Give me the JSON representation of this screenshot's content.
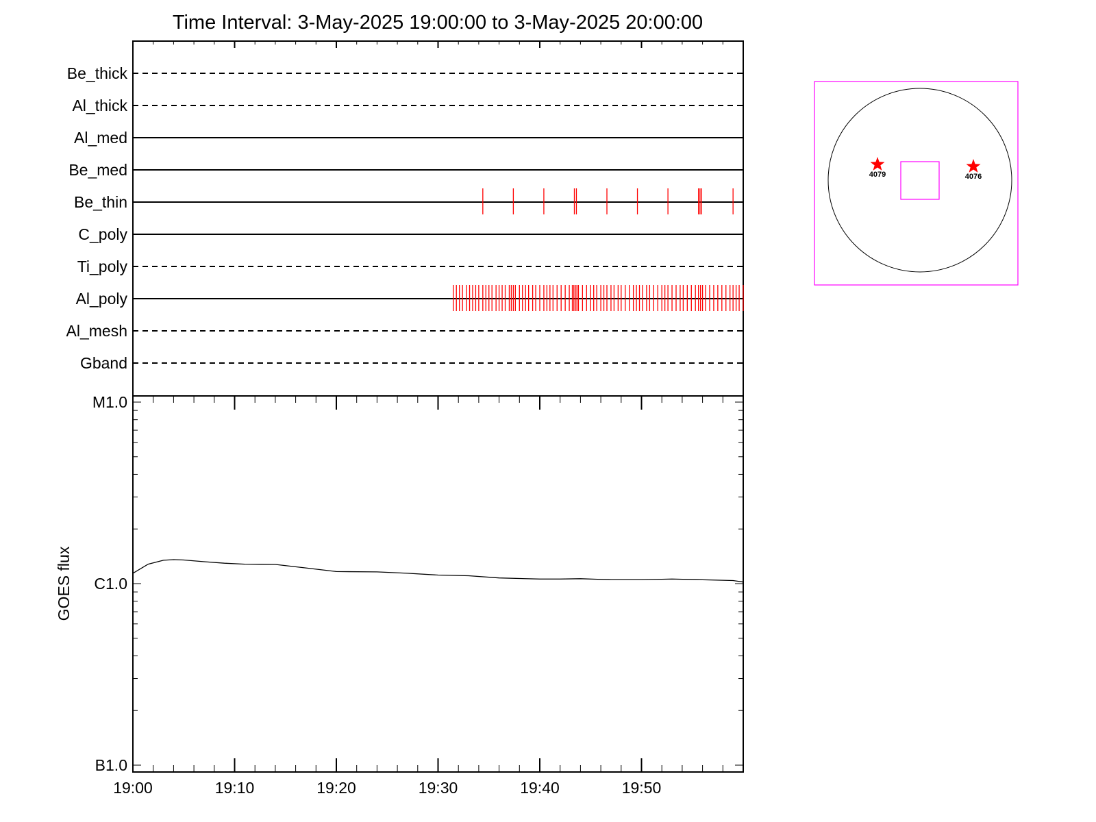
{
  "title": "Time Interval:  3-May-2025 19:00:00 to  3-May-2025 20:00:00",
  "colors": {
    "axes": "#000000",
    "events": "#ff0000",
    "fov": "#ff00ff",
    "disk": "#000000",
    "curve": "#000000"
  },
  "chart_data": [
    {
      "type": "event-timeline",
      "x_range": [
        "19:00",
        "20:00"
      ],
      "rows": [
        {
          "name": "Be_thick",
          "style": "dashed",
          "events": []
        },
        {
          "name": "Al_thick",
          "style": "dashed",
          "events": []
        },
        {
          "name": "Al_med",
          "style": "solid",
          "events": []
        },
        {
          "name": "Be_med",
          "style": "solid",
          "events": []
        },
        {
          "name": "Be_thin",
          "style": "solid",
          "events": [
            34.4,
            37.4,
            40.4,
            43.4,
            43.6,
            46.6,
            49.6,
            52.6,
            55.6,
            55.75,
            55.9,
            59.0
          ]
        },
        {
          "name": "C_poly",
          "style": "solid",
          "events": []
        },
        {
          "name": "Ti_poly",
          "style": "dashed",
          "events": []
        },
        {
          "name": "Al_poly",
          "style": "solid",
          "events": [
            31.5,
            31.8,
            32.1,
            32.4,
            32.8,
            33.1,
            33.4,
            33.7,
            34.0,
            34.4,
            34.7,
            35.0,
            35.3,
            35.7,
            36.0,
            36.3,
            36.6,
            37.0,
            37.2,
            37.4,
            37.6,
            38.0,
            38.3,
            38.6,
            38.9,
            39.3,
            39.6,
            40.0,
            40.4,
            40.7,
            41.0,
            41.3,
            41.7,
            42.1,
            42.5,
            42.9,
            43.2,
            43.35,
            43.5,
            43.65,
            43.8,
            44.2,
            44.6,
            45.0,
            45.3,
            45.6,
            46.0,
            46.3,
            46.6,
            47.0,
            47.3,
            47.7,
            48.0,
            48.4,
            48.8,
            49.2,
            49.5,
            49.8,
            50.1,
            50.5,
            50.8,
            51.2,
            51.6,
            52.0,
            52.3,
            52.6,
            53.0,
            53.4,
            53.8,
            54.1,
            54.5,
            54.9,
            55.3,
            55.6,
            55.8,
            56.0,
            56.3,
            56.7,
            57.1,
            57.5,
            57.9,
            58.3,
            58.7,
            59.0,
            59.3,
            59.6,
            60.0
          ]
        },
        {
          "name": "Al_mesh",
          "style": "dashed",
          "events": []
        },
        {
          "name": "Gband",
          "style": "dashed",
          "events": []
        }
      ]
    },
    {
      "type": "line",
      "ylabel": "GOES flux",
      "yscale": "log",
      "y_ticks": [
        "B1.0",
        "C1.0",
        "M1.0"
      ],
      "ylim": [
        1e-07,
        1e-05
      ],
      "x_ticks": [
        "19:00",
        "19:10",
        "19:20",
        "19:30",
        "19:40",
        "19:50"
      ],
      "xlim": [
        0,
        60
      ],
      "series": [
        {
          "x": [
            0,
            1.5,
            3,
            4,
            5,
            7,
            9,
            11,
            14,
            17,
            20,
            24,
            27,
            30,
            33,
            36,
            40,
            42,
            44,
            47,
            50,
            53,
            56,
            59,
            60
          ],
          "y": [
            1.14e-06,
            1.28e-06,
            1.345e-06,
            1.355e-06,
            1.35e-06,
            1.32e-06,
            1.295e-06,
            1.28e-06,
            1.275e-06,
            1.22e-06,
            1.165e-06,
            1.16e-06,
            1.14e-06,
            1.115e-06,
            1.105e-06,
            1.075e-06,
            1.06e-06,
            1.06e-06,
            1.065e-06,
            1.05e-06,
            1.05e-06,
            1.06e-06,
            1.05e-06,
            1.04e-06,
            1.02e-06
          ]
        }
      ]
    },
    {
      "type": "solar-map",
      "regions": [
        {
          "label": "4079",
          "color": "#ff0000"
        },
        {
          "label": "4076",
          "color": "#ff0000"
        }
      ]
    }
  ]
}
